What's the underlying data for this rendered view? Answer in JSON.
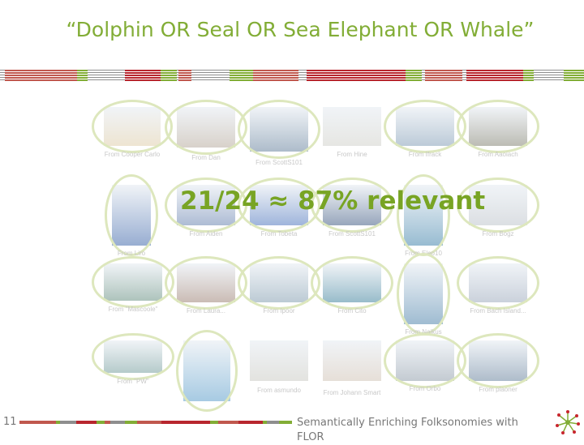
{
  "slide": {
    "title": "“Dolphin OR Seal OR Sea Elephant OR Whale”",
    "overlay": "21/24 ≈ 87% relevant",
    "page_number": "11",
    "footer": "Semantically Enriching Folksonomies with FLOR",
    "colors": {
      "green": "#82ad36",
      "red": "#b8262e",
      "gray": "#8e8e8e",
      "ring": "#dde7bd"
    }
  },
  "results": [
    {
      "caption": "From Cooper Carlo",
      "relevant": true,
      "tone": "#d8c49a"
    },
    {
      "caption": "From Dan",
      "relevant": true,
      "tone": "#a89a8a"
    },
    {
      "caption": "From ScottS101",
      "relevant": true,
      "tone": "#4a6a8a"
    },
    {
      "caption": "From Hine",
      "relevant": false,
      "tone": "#c8c8c0"
    },
    {
      "caption": "From Ifrack",
      "relevant": true,
      "tone": "#6a8aa8"
    },
    {
      "caption": "From Aaoiach",
      "relevant": true,
      "tone": "#6a6a58"
    },
    {
      "caption": "From Liro",
      "relevant": true,
      "tone": "#1a4a9a"
    },
    {
      "caption": "From Aiden",
      "relevant": true,
      "tone": "#4a6aa0"
    },
    {
      "caption": "From Tobeta",
      "relevant": true,
      "tone": "#2a5ab0"
    },
    {
      "caption": "From ScottS101",
      "relevant": true,
      "tone": "#1a3a6a"
    },
    {
      "caption": "From Eleo10",
      "relevant": true,
      "tone": "#1a6a9a"
    },
    {
      "caption": "From Bogz",
      "relevant": true,
      "tone": "#b0b8c0"
    },
    {
      "caption": "From \"Mascoole\"",
      "relevant": true,
      "tone": "#4a7a6a"
    },
    {
      "caption": "From Laura...",
      "relevant": true,
      "tone": "#8a6a5a"
    },
    {
      "caption": "From Ipoor",
      "relevant": true,
      "tone": "#6a8aa0"
    },
    {
      "caption": "From Cito",
      "relevant": true,
      "tone": "#1a6a8a"
    },
    {
      "caption": "From Naikus",
      "relevant": true,
      "tone": "#2a6a9a"
    },
    {
      "caption": "From Bach Island...",
      "relevant": true,
      "tone": "#8a9ab0"
    },
    {
      "caption": "From \"PW\"",
      "relevant": true,
      "tone": "#5a8a8a"
    },
    {
      "caption": "",
      "relevant": true,
      "tone": "#3a8ac0"
    },
    {
      "caption": "From asmundo",
      "relevant": false,
      "tone": "#c0c0b8"
    },
    {
      "caption": "From Johann Smart",
      "relevant": false,
      "tone": "#c8b8a8"
    },
    {
      "caption": "From Orbo",
      "relevant": true,
      "tone": "#7a8a9a"
    },
    {
      "caption": "From plaoner",
      "relevant": true,
      "tone": "#4a6a8a"
    }
  ]
}
